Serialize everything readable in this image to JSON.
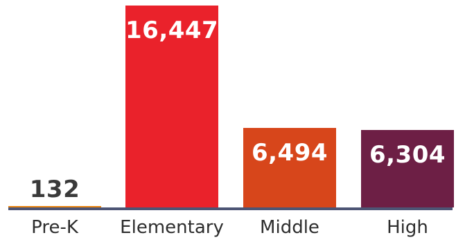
{
  "chart_data": {
    "type": "bar",
    "categories": [
      "Pre-K",
      "Elementary",
      "Middle",
      "High"
    ],
    "values": [
      132,
      16447,
      6494,
      6304
    ],
    "value_labels": [
      "132",
      "16,447",
      "6,494",
      "6,304"
    ],
    "colors": [
      "#e8820e",
      "#ea222b",
      "#d7461b",
      "#6d1f45"
    ],
    "baseline_color": "#4d5575",
    "title": "",
    "xlabel": "",
    "ylabel": "",
    "ylim": [
      0,
      16447
    ],
    "grid": false,
    "legend": "none"
  }
}
